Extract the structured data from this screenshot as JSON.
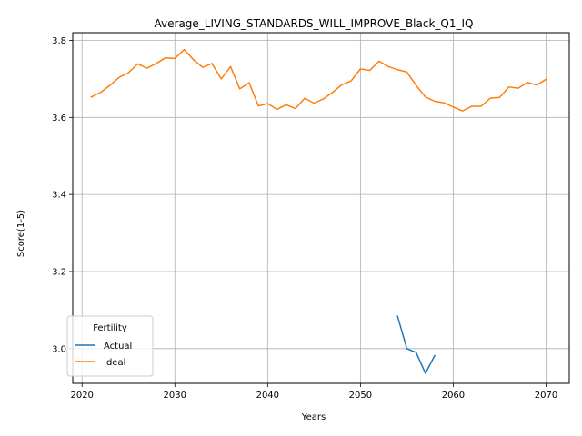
{
  "chart_data": {
    "type": "line",
    "title": "Average_LIVING_STANDARDS_WILL_IMPROVE_Black_Q1_IQ",
    "xlabel": "Years",
    "ylabel": "Score(1-5)",
    "xlim": [
      2019,
      2072.5
    ],
    "ylim": [
      2.91,
      3.82
    ],
    "xticks": [
      2020,
      2030,
      2040,
      2050,
      2060,
      2070
    ],
    "yticks": [
      3.0,
      3.2,
      3.4,
      3.6,
      3.8
    ],
    "ytick_labels": [
      "3.0",
      "3.2",
      "3.4",
      "3.6",
      "3.8"
    ],
    "grid": true,
    "legend": {
      "title": "Fertility",
      "placement": "lower-left"
    },
    "series": [
      {
        "name": "Actual",
        "color": "#1f77b4",
        "x": [
          2054,
          2055,
          2056,
          2057,
          2058
        ],
        "y": [
          3.084,
          3.0,
          2.99,
          2.936,
          2.982
        ]
      },
      {
        "name": "Ideal",
        "color": "#ff7f0e",
        "x": [
          2021,
          2022,
          2023,
          2024,
          2025,
          2026,
          2027,
          2028,
          2029,
          2030,
          2031,
          2032,
          2033,
          2034,
          2035,
          2036,
          2037,
          2038,
          2039,
          2040,
          2041,
          2042,
          2043,
          2044,
          2045,
          2046,
          2047,
          2048,
          2049,
          2050,
          2051,
          2052,
          2053,
          2054,
          2055,
          2056,
          2057,
          2058,
          2059,
          2060,
          2061,
          2062,
          2063,
          2064,
          2065,
          2066,
          2067,
          2068,
          2069,
          2070
        ],
        "y": [
          3.653,
          3.665,
          3.683,
          3.704,
          3.716,
          3.739,
          3.728,
          3.74,
          3.755,
          3.753,
          3.776,
          3.75,
          3.73,
          3.74,
          3.7,
          3.732,
          3.674,
          3.69,
          3.63,
          3.636,
          3.621,
          3.633,
          3.623,
          3.65,
          3.637,
          3.648,
          3.665,
          3.685,
          3.695,
          3.726,
          3.722,
          3.746,
          3.732,
          3.724,
          3.718,
          3.683,
          3.653,
          3.642,
          3.638,
          3.627,
          3.617,
          3.629,
          3.629,
          3.65,
          3.652,
          3.679,
          3.676,
          3.691,
          3.684,
          3.699
        ]
      }
    ]
  }
}
